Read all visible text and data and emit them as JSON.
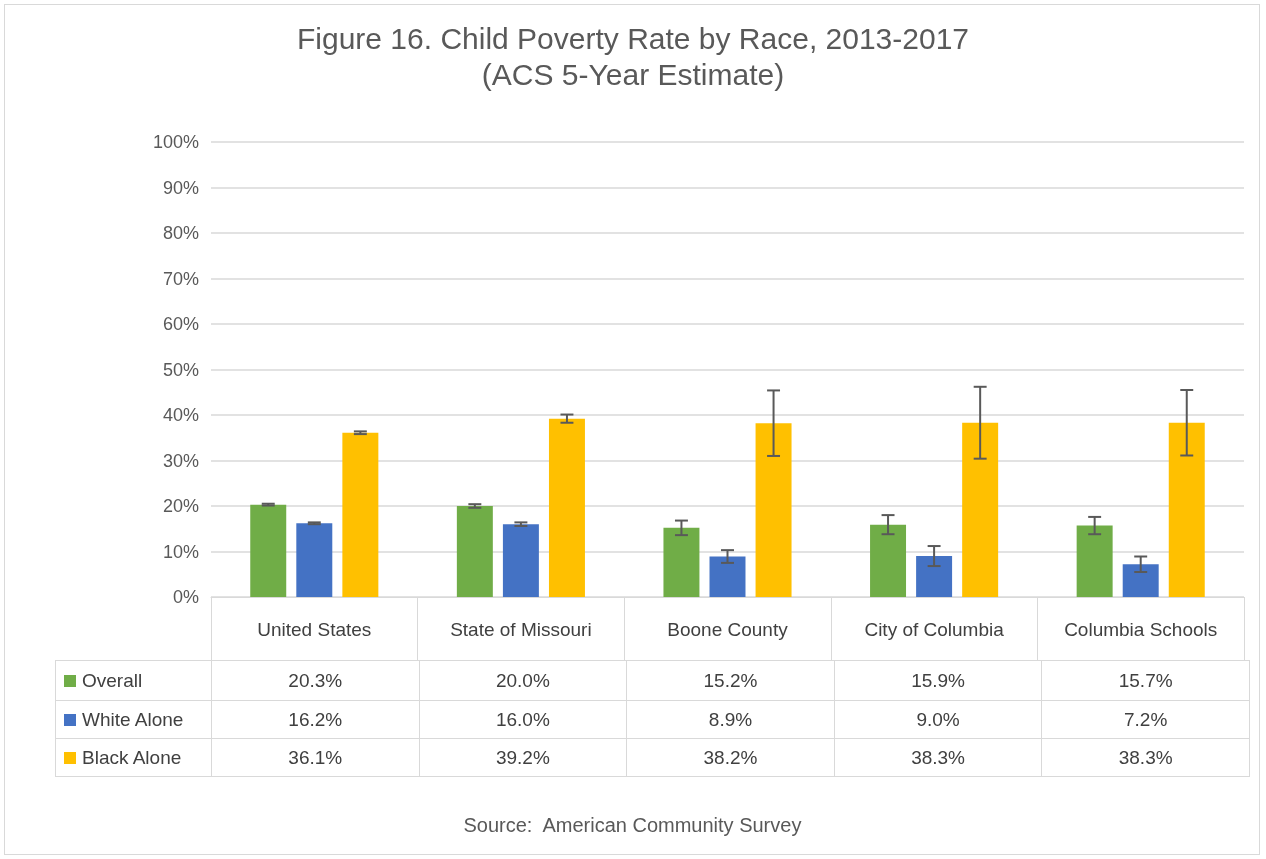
{
  "chart_data": {
    "type": "bar",
    "title": "Figure 16. Child Poverty Rate by Race, 2013-2017",
    "subtitle": "(ACS 5-Year Estimate)",
    "categories": [
      "United States",
      "State of Missouri",
      "Boone County",
      "City of Columbia",
      "Columbia Schools"
    ],
    "series": [
      {
        "name": "Overall",
        "color": "#70ad47",
        "values": [
          20.3,
          20.0,
          15.2,
          15.9,
          15.7
        ],
        "errors": [
          0.2,
          0.4,
          1.6,
          2.1,
          1.9
        ],
        "value_labels": [
          "20.3%",
          "20.0%",
          "15.2%",
          "15.9%",
          "15.7%"
        ]
      },
      {
        "name": "White Alone",
        "color": "#4472c4",
        "values": [
          16.2,
          16.0,
          8.9,
          9.0,
          7.2
        ],
        "errors": [
          0.2,
          0.4,
          1.4,
          2.2,
          1.7
        ],
        "value_labels": [
          "16.2%",
          "16.0%",
          "8.9%",
          "9.0%",
          "7.2%"
        ]
      },
      {
        "name": "Black Alone",
        "color": "#ffc000",
        "values": [
          36.1,
          39.2,
          38.2,
          38.3,
          38.3
        ],
        "errors": [
          0.3,
          0.9,
          7.2,
          7.9,
          7.2
        ],
        "value_labels": [
          "36.1%",
          "39.2%",
          "38.2%",
          "38.3%",
          "38.3%"
        ]
      }
    ],
    "ylim": [
      0,
      100
    ],
    "yticks": [
      {
        "value": 0,
        "label": "0%"
      },
      {
        "value": 10,
        "label": "10%"
      },
      {
        "value": 20,
        "label": "20%"
      },
      {
        "value": 30,
        "label": "30%"
      },
      {
        "value": 40,
        "label": "40%"
      },
      {
        "value": 50,
        "label": "50%"
      },
      {
        "value": 60,
        "label": "60%"
      },
      {
        "value": 70,
        "label": "70%"
      },
      {
        "value": 80,
        "label": "80%"
      },
      {
        "value": 90,
        "label": "90%"
      },
      {
        "value": 100,
        "label": "100%"
      }
    ],
    "grid": "y",
    "legend": "bottom left",
    "annotations": [
      "Source:  American Community Survey"
    ]
  }
}
